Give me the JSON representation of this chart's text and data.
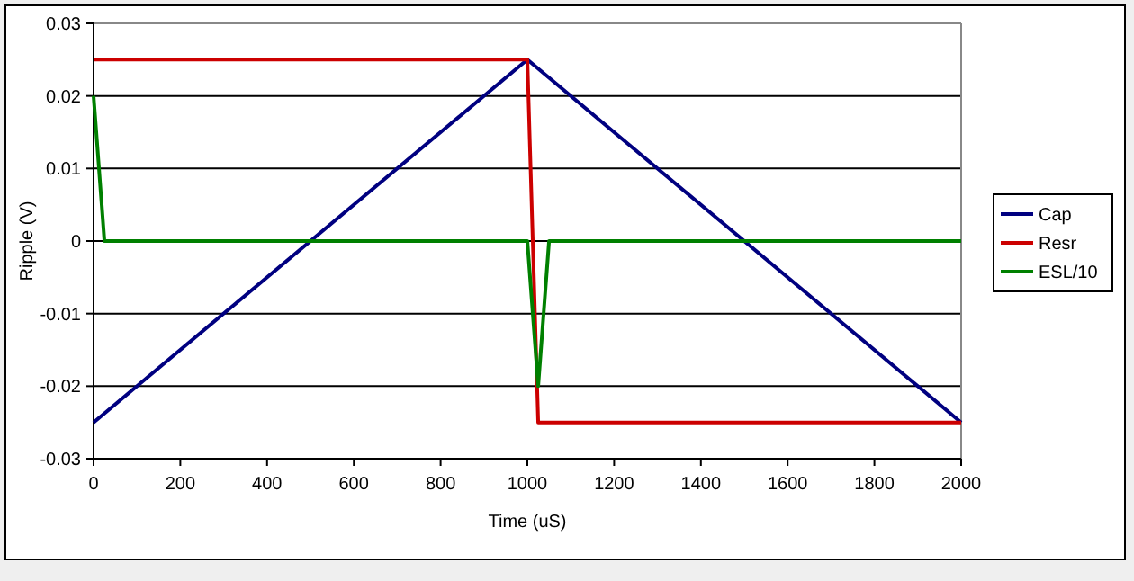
{
  "chart_data": {
    "type": "line",
    "xlabel": "Time (uS)",
    "ylabel": "Ripple (V)",
    "xlim": [
      0,
      2000
    ],
    "xticks": [
      0,
      200,
      400,
      600,
      800,
      1000,
      1200,
      1400,
      1600,
      1800,
      2000
    ],
    "ylim": [
      -0.03,
      0.03
    ],
    "yticks": [
      -0.03,
      -0.02,
      -0.01,
      0,
      0.01,
      0.02,
      0.03
    ],
    "grid": "y",
    "legend": "right",
    "marker": "none",
    "line_style": "solid",
    "series": [
      {
        "name": "Cap",
        "color": "#000080",
        "x": [
          0,
          1000,
          2000
        ],
        "values": [
          -0.025,
          0.025,
          -0.025
        ]
      },
      {
        "name": "Resr",
        "color": "#cc0000",
        "x": [
          0,
          1000,
          1025,
          2000
        ],
        "values": [
          0.025,
          0.025,
          -0.025,
          -0.025
        ]
      },
      {
        "name": "ESL/10",
        "color": "#008000",
        "x": [
          0,
          25,
          1000,
          1025,
          1050,
          2000
        ],
        "values": [
          0.02,
          0,
          0,
          -0.02,
          0,
          0
        ]
      }
    ]
  }
}
